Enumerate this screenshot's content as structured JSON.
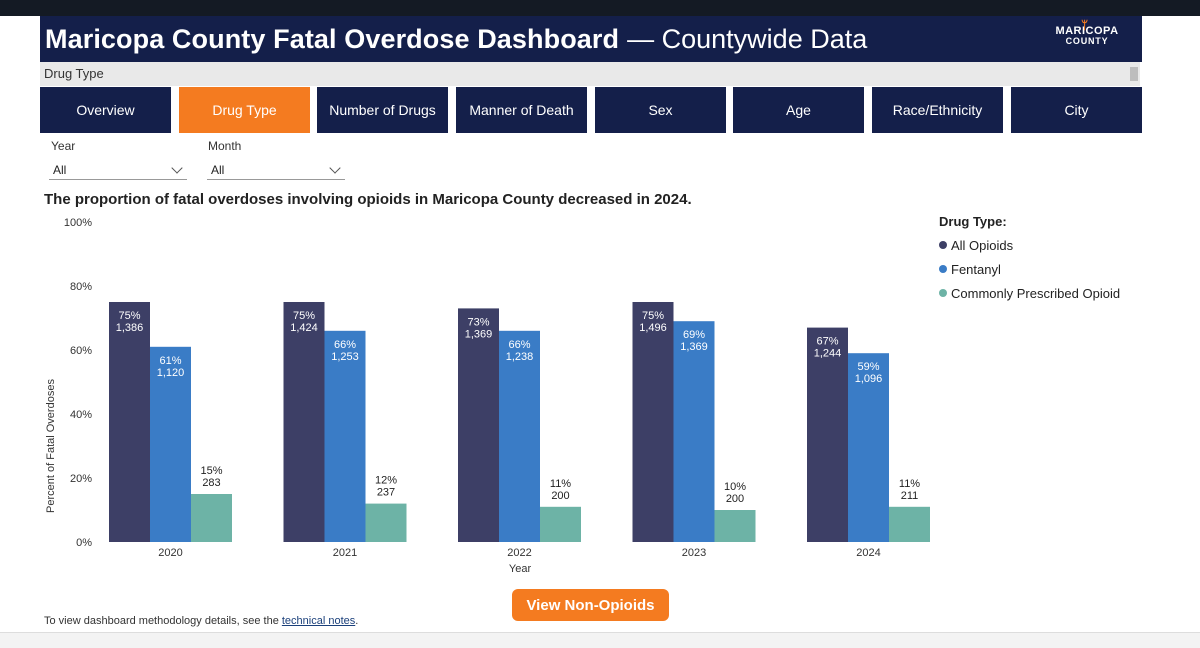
{
  "header": {
    "title_main": "Maricopa County Fatal Overdose Dashboard",
    "title_rest": "— Countywide Data",
    "logo_line1": "MARICOPA",
    "logo_line2": "COUNTY"
  },
  "subbar": {
    "label": "Drug Type"
  },
  "tabs": [
    {
      "label": "Overview",
      "active": false
    },
    {
      "label": "Drug Type",
      "active": true
    },
    {
      "label": "Number of Drugs",
      "active": false
    },
    {
      "label": "Manner of Death",
      "active": false
    },
    {
      "label": "Sex",
      "active": false
    },
    {
      "label": "Age",
      "active": false
    },
    {
      "label": "Race/Ethnicity",
      "active": false
    },
    {
      "label": "City",
      "active": false
    }
  ],
  "filters": {
    "year": {
      "label": "Year",
      "value": "All"
    },
    "month": {
      "label": "Month",
      "value": "All"
    }
  },
  "headline": "The proportion of fatal overdoses involving opioids in Maricopa County decreased in 2024.",
  "legend": {
    "title": "Drug Type:",
    "items": [
      "All Opioids",
      "Fentanyl",
      "Commonly Prescribed Opioid"
    ]
  },
  "colors": {
    "navy": "#141f4a",
    "orange": "#f47b20",
    "all_opioids": "#3d3f66",
    "fentanyl": "#3a7cc6",
    "prescribed": "#6db3a6"
  },
  "chart_data": {
    "type": "bar",
    "categories": [
      "2020",
      "2021",
      "2022",
      "2023",
      "2024"
    ],
    "series": [
      {
        "name": "All Opioids",
        "values": [
          75,
          75,
          73,
          75,
          67
        ],
        "labels": [
          "75%\n1,386",
          "75%\n1,424",
          "73%\n1,369",
          "75%\n1,496",
          "67%\n1,244"
        ]
      },
      {
        "name": "Fentanyl",
        "values": [
          61,
          66,
          66,
          69,
          59
        ],
        "labels": [
          "61%\n1,120",
          "66%\n1,253",
          "66%\n1,238",
          "69%\n1,369",
          "59%\n1,096"
        ]
      },
      {
        "name": "Commonly Prescribed Opioid",
        "values": [
          15,
          12,
          11,
          10,
          11
        ],
        "labels": [
          "15%\n283",
          "12%\n237",
          "11%\n200",
          "10%\n200",
          "11%\n211"
        ]
      }
    ],
    "xlabel": "Year",
    "ylabel": "Percent of Fatal Overdoses",
    "ylim": [
      0,
      100
    ],
    "yticks": [
      "0%",
      "20%",
      "40%",
      "60%",
      "80%",
      "100%"
    ],
    "grid": false,
    "legend_position": "right"
  },
  "button": {
    "label": "View Non-Opioids"
  },
  "footnote": {
    "text": "To view dashboard methodology details, see the ",
    "link": "technical notes",
    "end": "."
  }
}
